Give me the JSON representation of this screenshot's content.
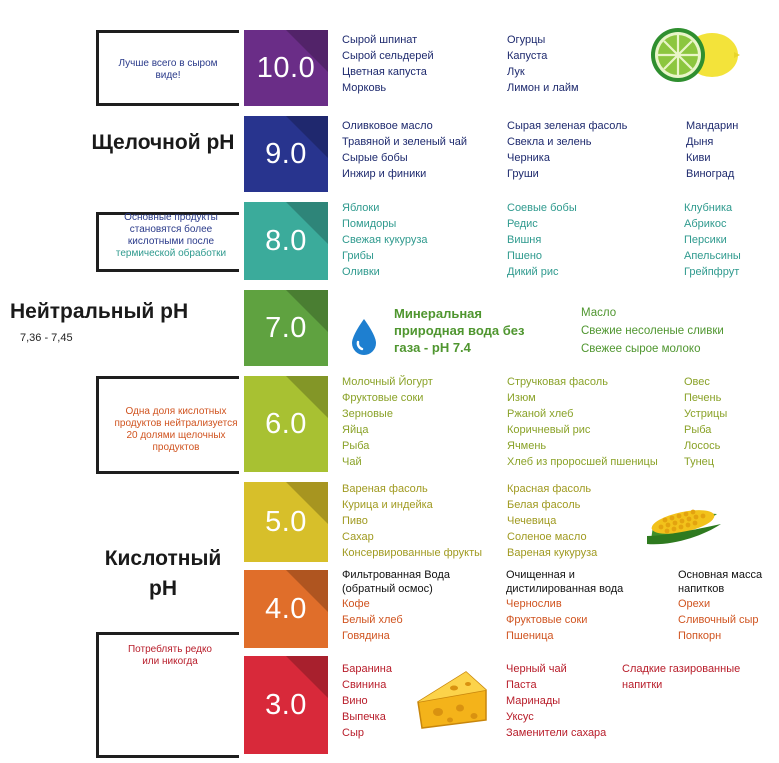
{
  "colors": {
    "ph10": "#6a2d87",
    "ph9": "#28348e",
    "ph8": "#3bab9b",
    "ph7": "#5fa240",
    "ph6": "#a8c132",
    "ph5": "#d7bf2a",
    "ph4": "#e06e2a",
    "ph3": "#d8293a",
    "text10": "#1e2a6e",
    "text9": "#1e2a6e",
    "text8": "#2f9a8e",
    "text7": "#4f962f",
    "text6": "#8aa228",
    "text5": "#a09a20",
    "text4": "#d05420",
    "text3": "#b81d2a"
  },
  "labels": {
    "alkaline": "Щелочной рН",
    "neutral": "Нейтральный рН",
    "neutral_range": "7,36 - 7,45",
    "acidic": "Кислотный рН"
  },
  "notes": {
    "raw": "Лучше всего в сыром виде!",
    "heat_line1": "Основные продукты становятся более кислотными после",
    "heat_line2": "термической обработки",
    "ratio": "Одна доля кислотных продуктов нейтрализуется 20 долями щелочных продуктов",
    "rarely": "Потреблять редко или никогда"
  },
  "levels": [
    {
      "ph": "10.0",
      "columns": [
        [
          "Сырой шпинат",
          "Сырой сельдерей",
          "Цветная капуста",
          "Морковь"
        ],
        [
          "Огурцы",
          "Капуста",
          "Лук",
          "Лимон и лайм"
        ]
      ]
    },
    {
      "ph": "9.0",
      "columns": [
        [
          "Оливковое масло",
          "Травяной и зеленый чай",
          "Сырые бобы",
          "Инжир и финики"
        ],
        [
          "Сырая зеленая фасоль",
          "Свекла и зелень",
          "Черника",
          "Груши"
        ],
        [
          "Мандарин",
          "Дыня",
          "Киви",
          "Виноград"
        ]
      ]
    },
    {
      "ph": "8.0",
      "columns": [
        [
          "Яблоки",
          "Помидоры",
          "Свежая кукуруза",
          "Грибы",
          "Оливки"
        ],
        [
          "Соевые бобы",
          "Редис",
          "Вишня",
          "Пшено",
          "Дикий рис"
        ],
        [
          "Клубника",
          "Абрикос",
          "Персики",
          "Апельсины",
          "Грейпфрут"
        ]
      ]
    },
    {
      "ph": "7.0",
      "water": "Минеральная природная вода без газа - рН 7.4",
      "columns": [
        [
          "Масло",
          "Свежие несоленые сливки",
          "Свежее сырое молоко"
        ]
      ]
    },
    {
      "ph": "6.0",
      "columns": [
        [
          "Молочный Йогурт",
          "Фруктовые соки",
          "Зерновые",
          "Яйца",
          "Рыба",
          "Чай"
        ],
        [
          "Стручковая фасоль",
          "Изюм",
          "Ржаной хлеб",
          "Коричневый рис",
          "Ячмень",
          "Хлеб из проросшей пшеницы"
        ],
        [
          "Овес",
          "Печень",
          "Устрицы",
          "Рыба",
          "Лосось",
          "Тунец"
        ]
      ]
    },
    {
      "ph": "5.0",
      "columns": [
        [
          "Вареная фасоль",
          "Курица и индейка",
          "Пиво",
          "Сахар",
          "Консервированные фрукты"
        ],
        [
          "Красная фасоль",
          "Белая фасоль",
          "Чечевица",
          "Соленое масло",
          "Вареная кукуруза"
        ]
      ]
    },
    {
      "ph": "4.0",
      "headers": [
        "Фильтрованная Вода (обратный осмос)",
        "Очищенная и дистилированная вода",
        "Основная масса напитков"
      ],
      "columns": [
        [
          "Кофе",
          "Белый хлеб",
          "Говядина"
        ],
        [
          "Чернослив",
          "Фруктовые соки",
          "Пшеница"
        ],
        [
          "Орехи",
          "Сливочный сыр",
          "Попкорн"
        ]
      ]
    },
    {
      "ph": "3.0",
      "columns": [
        [
          "Баранина",
          "Свинина",
          "Вино",
          "Выпечка",
          "Сыр"
        ],
        [
          "Черный чай",
          "Паста",
          "Маринады",
          "Уксус",
          "Заменители сахара"
        ],
        [
          "Сладкие газированные напитки"
        ]
      ]
    }
  ]
}
